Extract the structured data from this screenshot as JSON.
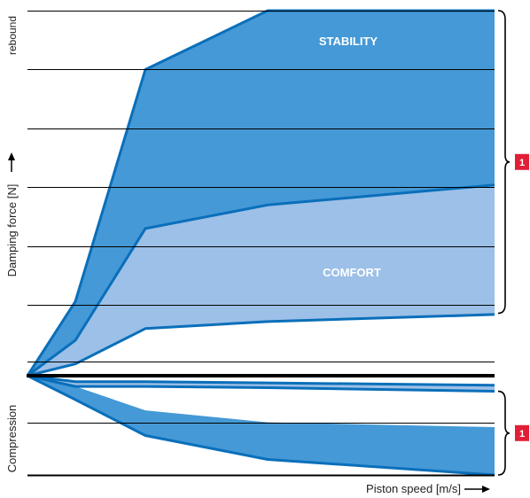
{
  "chart_data": {
    "type": "area",
    "title": "",
    "ylabel_top": "rebound",
    "ylabel_main": "Damping force [N]",
    "ylabel_bottom": "Compression",
    "xlabel": "Piston speed [m/s]",
    "grid": true,
    "x": [
      0,
      1,
      2,
      3,
      4
    ],
    "xlim": [
      0,
      4
    ],
    "ylim": [
      -8.5,
      30
    ],
    "series": [
      {
        "name": "STABILITY",
        "region": "rebound",
        "color": "#4599d6",
        "lower": [
          0,
          3,
          12.5,
          14.5,
          16.2
        ],
        "upper": [
          0,
          6.3,
          26,
          31,
          31
        ]
      },
      {
        "name": "COMFORT",
        "region": "rebound",
        "color": "#9cc0e7",
        "lower": [
          0,
          1,
          4,
          4.6,
          5.2
        ],
        "upper": [
          0,
          3,
          12.5,
          14.5,
          16.2
        ]
      },
      {
        "name": "",
        "region": "compression",
        "color": "#9cc0e7",
        "lower": [
          0,
          -0.9,
          -0.9,
          -1,
          -1.3
        ],
        "upper": [
          0,
          -0.5,
          -0.5,
          -0.6,
          -0.8
        ]
      },
      {
        "name": "",
        "region": "compression",
        "color": "#4599d6",
        "lower": [
          0,
          -2,
          -5,
          -7,
          -8.3
        ],
        "upper": [
          0,
          -0.9,
          -2.9,
          -3.9,
          -4.3
        ]
      }
    ],
    "brackets": [
      {
        "label": "1",
        "region": "rebound",
        "range": [
          5.3,
          31
        ]
      },
      {
        "label": "1",
        "region": "compression",
        "range": [
          -8.3,
          -1.3
        ]
      }
    ],
    "colors": {
      "line": "#0a6fba",
      "badge": "#e01f36",
      "axis": "#000000"
    }
  }
}
